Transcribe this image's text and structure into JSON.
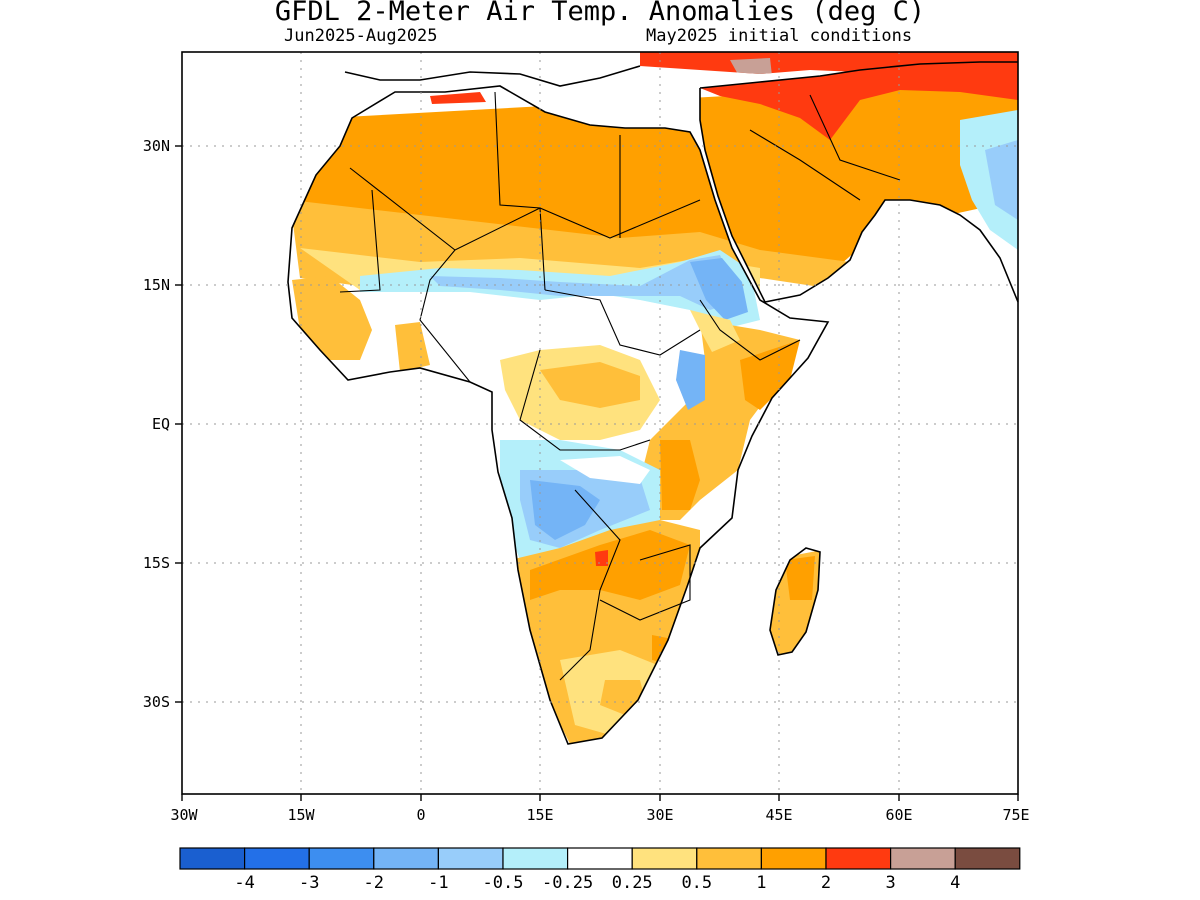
{
  "title": "GFDL 2-Meter Air Temp. Anomalies (deg C)",
  "subtitle_left": "Jun2025-Aug2025",
  "subtitle_right": "May2025 initial conditions",
  "lat_labels": [
    "30N",
    "15N",
    "EQ",
    "15S",
    "30S"
  ],
  "lon_labels": [
    "30W",
    "15W",
    "0",
    "15E",
    "30E",
    "45E",
    "60E",
    "75E"
  ],
  "colorbar": {
    "colors": [
      "#1a5fd0",
      "#2370e8",
      "#3d8ef0",
      "#74b4f6",
      "#98cdfa",
      "#b4effa",
      "#ffffff",
      "#ffe27e",
      "#ffbf3a",
      "#ffa000",
      "#ff3a10",
      "#c8a096",
      "#7a4c40"
    ],
    "labels": [
      "-4",
      "-3",
      "-2",
      "-1",
      "-0.5",
      "-0.25",
      "0.25",
      "0.5",
      "1",
      "2",
      "3",
      "4"
    ]
  }
}
